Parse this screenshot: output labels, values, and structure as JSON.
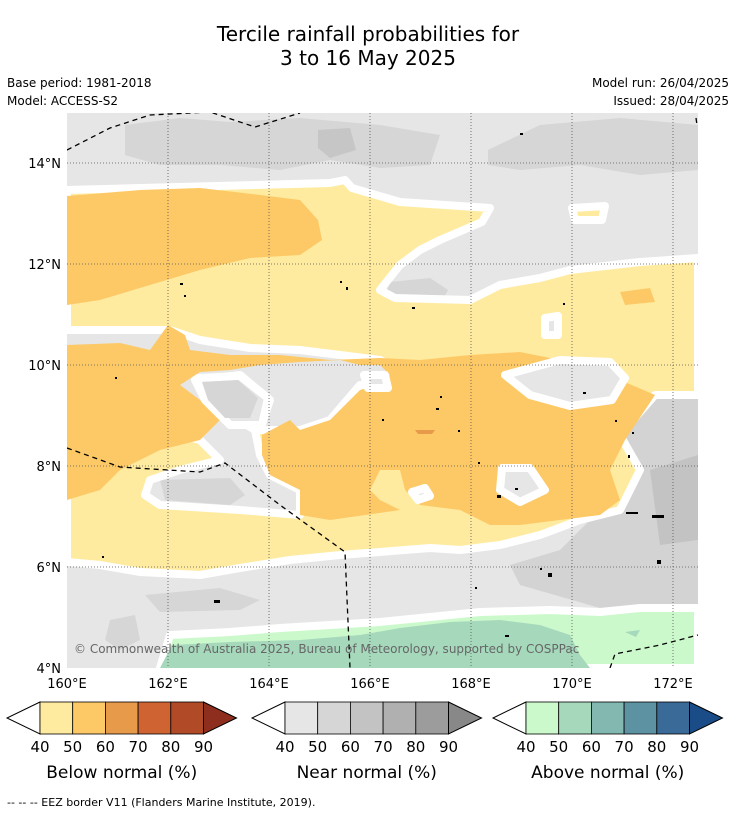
{
  "title_line1": "Tercile rainfall probabilities for",
  "title_line2": "3 to 16 May 2025",
  "base_period": "Base period: 1981-2018",
  "model": "Model: ACCESS-S2",
  "model_run": "Model run: 26/04/2025",
  "issued": "Issued: 28/04/2025",
  "map": {
    "lat_labels": [
      "14°N",
      "12°N",
      "10°N",
      "8°N",
      "6°N",
      "4°N"
    ],
    "lon_labels": [
      "160°E",
      "162°E",
      "164°E",
      "166°E",
      "168°E",
      "170°E",
      "172°E"
    ],
    "copyright": "© Commonwealth of Australia 2025, Bureau of Meteorology, supported by COSPPac"
  },
  "colorbars": [
    {
      "name": "below",
      "title": "Below normal (%)",
      "ticks": [
        "40",
        "50",
        "60",
        "70",
        "80",
        "90"
      ],
      "colors": [
        "#ffeba0",
        "#fdc966",
        "#e69a4a",
        "#cf6331",
        "#b04a27",
        "#8e2e1e"
      ]
    },
    {
      "name": "near",
      "title": "Near normal (%)",
      "ticks": [
        "40",
        "50",
        "60",
        "70",
        "80",
        "90"
      ],
      "colors": [
        "#e6e6e6",
        "#d6d6d6",
        "#c3c3c3",
        "#b0b0b0",
        "#9c9c9c",
        "#888888"
      ]
    },
    {
      "name": "above",
      "title": "Above normal (%)",
      "ticks": [
        "40",
        "50",
        "60",
        "70",
        "80",
        "90"
      ],
      "colors": [
        "#ccf9cc",
        "#a6d9bc",
        "#82b8b0",
        "#5d92a2",
        "#3a6a98",
        "#1a4d87"
      ]
    }
  ],
  "footnote": "--  --  -- EEZ border V11 (Flanders Marine Institute, 2019)."
}
